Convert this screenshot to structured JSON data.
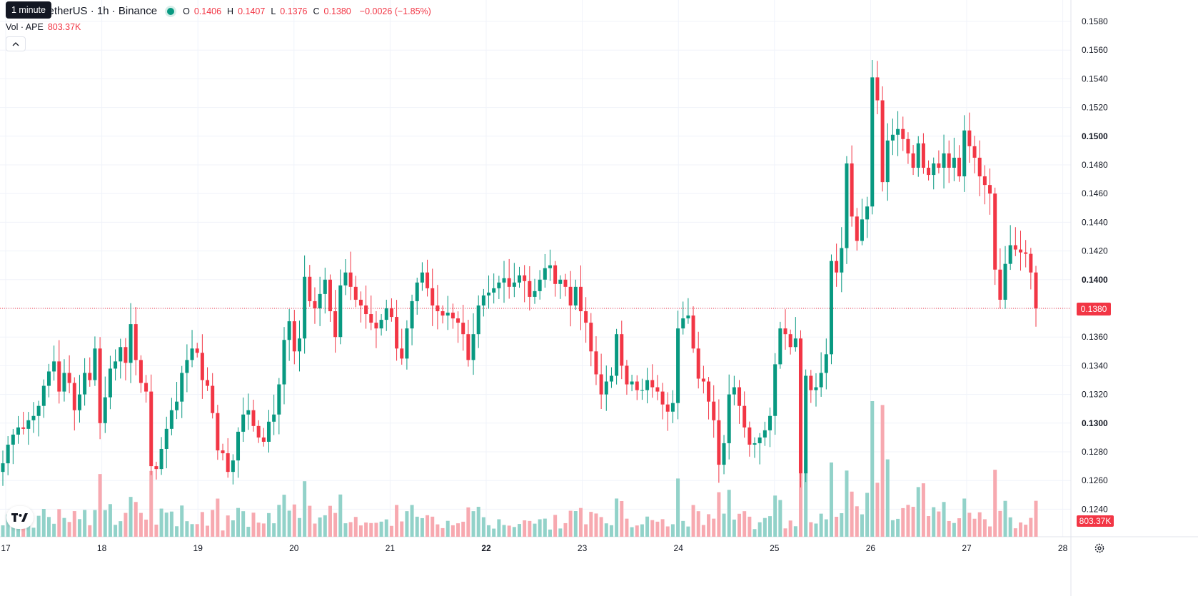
{
  "header": {
    "symbol_title": "TetherUS · 1h · Binance",
    "tooltip": "1 minute",
    "ohlc": {
      "o_label": "O",
      "o_value": "0.1406",
      "h_label": "H",
      "h_value": "0.1407",
      "l_label": "L",
      "l_value": "0.1376",
      "c_label": "C",
      "c_value": "0.1380",
      "change": "−0.0026 (−1.85%)"
    },
    "volume_label": "Vol · APE",
    "volume_value": "803.37K"
  },
  "price_tag": "0.1380",
  "volume_tag": "803.37K",
  "colors": {
    "up": "#089981",
    "down": "#f23645",
    "up_vol": "#92d2c9",
    "down_vol": "#f7a9b0",
    "grid": "#f0f3fa"
  },
  "chart_data": {
    "type": "candlestick",
    "interval": "1h",
    "x_ticks": [
      "17",
      "18",
      "19",
      "20",
      "21",
      "22",
      "23",
      "24",
      "25",
      "26",
      "27",
      "28"
    ],
    "y_ticks": [
      "0.1580",
      "0.1560",
      "0.1540",
      "0.1520",
      "0.1500",
      "0.1480",
      "0.1460",
      "0.1440",
      "0.1420",
      "0.1400",
      "0.1380",
      "0.1360",
      "0.1340",
      "0.1320",
      "0.1300",
      "0.1280",
      "0.1260",
      "0.1240"
    ],
    "y_bold_ticks": [
      "0.1500",
      "0.1400",
      "0.1300"
    ],
    "x_bold_ticks": [
      "22"
    ],
    "ylim": [
      0.1229,
      0.1593
    ],
    "last_price": 0.138,
    "closes": [
      0.1272,
      0.1285,
      0.1292,
      0.1297,
      0.1296,
      0.1302,
      0.1305,
      0.1312,
      0.1326,
      0.1336,
      0.1343,
      0.1322,
      0.1335,
      0.1328,
      0.1309,
      0.132,
      0.1335,
      0.133,
      0.1352,
      0.13,
      0.1318,
      0.1338,
      0.1343,
      0.1353,
      0.1342,
      0.1369,
      0.1344,
      0.1328,
      0.1322,
      0.127,
      0.1268,
      0.1282,
      0.1296,
      0.1309,
      0.1315,
      0.1335,
      0.1344,
      0.1352,
      0.1349,
      0.133,
      0.1326,
      0.1307,
      0.1281,
      0.1279,
      0.1266,
      0.1274,
      0.1294,
      0.1306,
      0.1309,
      0.1298,
      0.129,
      0.1287,
      0.1301,
      0.1306,
      0.1327,
      0.1358,
      0.1371,
      0.135,
      0.1359,
      0.1402,
      0.1385,
      0.138,
      0.139,
      0.14,
      0.1378,
      0.136,
      0.1396,
      0.1405,
      0.1395,
      0.1386,
      0.1382,
      0.1376,
      0.137,
      0.1366,
      0.1372,
      0.138,
      0.1374,
      0.1352,
      0.1345,
      0.1366,
      0.1385,
      0.1398,
      0.1405,
      0.1394,
      0.1382,
      0.1378,
      0.1375,
      0.1377,
      0.1373,
      0.137,
      0.1362,
      0.1344,
      0.1362,
      0.1382,
      0.1389,
      0.1391,
      0.1394,
      0.1398,
      0.1401,
      0.1395,
      0.1398,
      0.1403,
      0.1399,
      0.1388,
      0.1392,
      0.14,
      0.1408,
      0.141,
      0.1397,
      0.14,
      0.1395,
      0.1382,
      0.1395,
      0.1378,
      0.137,
      0.135,
      0.1334,
      0.132,
      0.1329,
      0.1333,
      0.1362,
      0.134,
      0.1327,
      0.1329,
      0.1323,
      0.1323,
      0.133,
      0.1325,
      0.1322,
      0.1313,
      0.1308,
      0.1314,
      0.1366,
      0.1373,
      0.1375,
      0.1352,
      0.1331,
      0.1329,
      0.1315,
      0.1302,
      0.1271,
      0.1286,
      0.132,
      0.1325,
      0.1312,
      0.1297,
      0.1285,
      0.1286,
      0.129,
      0.1295,
      0.1305,
      0.1341,
      0.1366,
      0.1362,
      0.1353,
      0.1359,
      0.1265,
      0.1333,
      0.1323,
      0.1325,
      0.1335,
      0.1348,
      0.1413,
      0.1405,
      0.1422,
      0.1481,
      0.1444,
      0.1427,
      0.1442,
      0.1451,
      0.1541,
      0.1525,
      0.1468,
      0.1497,
      0.1501,
      0.1505,
      0.1498,
      0.1488,
      0.1478,
      0.1495,
      0.1478,
      0.1473,
      0.1481,
      0.1478,
      0.1488,
      0.1478,
      0.1485,
      0.1472,
      0.1504,
      0.1493,
      0.1485,
      0.1472,
      0.1466,
      0.146,
      0.1407,
      0.1386,
      0.1411,
      0.1424,
      0.1421,
      0.1419,
      0.1418,
      0.1405,
      0.138
    ],
    "volume_axis_max": 1.6,
    "volume_unit": "M"
  }
}
